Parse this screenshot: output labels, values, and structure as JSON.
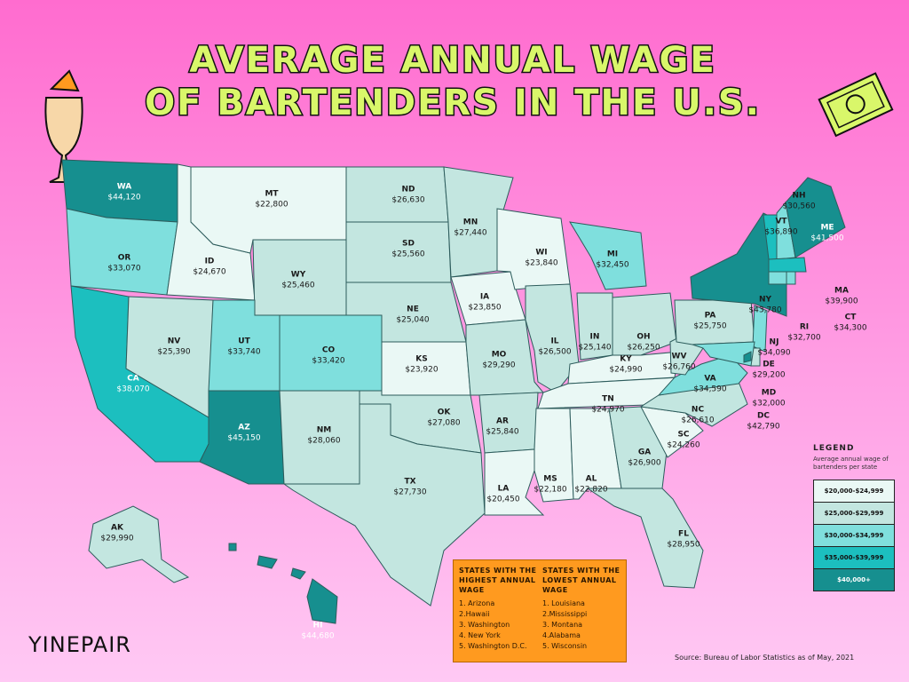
{
  "title": [
    "AVERAGE ANNUAL WAGE",
    "OF BARTENDERS IN THE U.S."
  ],
  "map": {
    "abbr": [
      "WA",
      "OR",
      "CA",
      "ID",
      "NV",
      "MT",
      "WY",
      "UT",
      "CO",
      "AZ",
      "NM",
      "ND",
      "SD",
      "NE",
      "KS",
      "OK",
      "TX",
      "MN",
      "IA",
      "MO",
      "AR",
      "LA",
      "WI",
      "IL",
      "MI",
      "IN",
      "OH",
      "KY",
      "TN",
      "MS",
      "AL",
      "GA",
      "FL",
      "SC",
      "NC",
      "VA",
      "WV",
      "PA",
      "NY",
      "NJ",
      "DE",
      "MD",
      "DC",
      "VT",
      "NH",
      "ME",
      "MA",
      "CT",
      "RI",
      "AK",
      "HI"
    ],
    "values": [
      44120,
      33070,
      38070,
      24670,
      25390,
      22800,
      25460,
      33740,
      33420,
      45150,
      28060,
      26630,
      25560,
      25040,
      23920,
      27080,
      27730,
      27440,
      23850,
      29290,
      25840,
      20450,
      23840,
      26500,
      32450,
      25140,
      26250,
      24990,
      24970,
      22180,
      22820,
      26900,
      28950,
      24260,
      26610,
      34590,
      26760,
      25750,
      43780,
      34090,
      29200,
      32000,
      42790,
      36890,
      30560,
      41500,
      39900,
      34300,
      32700,
      29990,
      44680
    ],
    "value_labels": [
      "$44,120",
      "$33,070",
      "$38,070",
      "$24,670",
      "$25,390",
      "$22,800",
      "$25,460",
      "$33,740",
      "$33,420",
      "$45,150",
      "$28,060",
      "$26,630",
      "$25,560",
      "$25,040",
      "$23,920",
      "$27,080",
      "$27,730",
      "$27,440",
      "$23,850",
      "$29,290",
      "$25,840",
      "$20,450",
      "$23,840",
      "$26,500",
      "$32,450",
      "$25,140",
      "$26,250",
      "$24,990",
      "$24,970",
      "$22,180",
      "$22,820",
      "$26,900",
      "$28,950",
      "$24,260",
      "$26,610",
      "$34,590",
      "$26,760",
      "$25,750",
      "$43,780",
      "$34,090",
      "$29,200",
      "$32,000",
      "$42,790",
      "$36,890",
      "$30,560",
      "$41,500",
      "$39,900",
      "$34,300",
      "$32,700",
      "$29,990",
      "$44,680"
    ]
  },
  "legend": {
    "title": "LEGEND",
    "subtitle": "Average annual wage of bartenders per state",
    "bins": [
      {
        "min": 20000,
        "max": 24999,
        "label": "$20,000-$24,999",
        "color": "#eaf8f5"
      },
      {
        "min": 25000,
        "max": 29999,
        "label": "$25,000-$29,999",
        "color": "#c3e6e0"
      },
      {
        "min": 30000,
        "max": 34999,
        "label": "$30,000-$34,999",
        "color": "#7fdfdd"
      },
      {
        "min": 35000,
        "max": 39999,
        "label": "$35,000-$39,999",
        "color": "#1cbfbf"
      },
      {
        "min": 40000,
        "label": "$40,000+",
        "color": "#168f8f"
      }
    ]
  },
  "notes": {
    "highest": {
      "heading": "STATES WITH THE HIGHEST ANNUAL WAGE",
      "items": [
        "1. Arizona",
        "2.Hawaii",
        "3. Washington",
        "4. New York",
        "5. Washington D.C."
      ]
    },
    "lowest": {
      "heading": "STATES WITH THE LOWEST ANNUAL WAGE",
      "items": [
        "1. Louisiana",
        "2.Mississippi",
        "3. Montana",
        "4.Alabama",
        "5. Wisconsin"
      ]
    }
  },
  "source": "Source: Bureau of Labor Statistics as of May, 2021",
  "logo": "YINEPAIR"
}
